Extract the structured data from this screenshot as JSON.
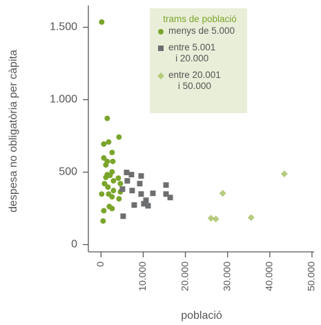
{
  "chart_data": {
    "type": "scatter",
    "xlabel": "població",
    "ylabel": "despesa no obligatòria per càpita",
    "legend_title": "trams de població",
    "legend": "upper right",
    "xlim": [
      -3000,
      50500
    ],
    "ylim": [
      -50,
      1650
    ],
    "xticks": [
      0,
      {
        "value": 10000,
        "label": "10.000"
      },
      {
        "value": 20000,
        "label": "20.000"
      },
      {
        "value": 30000,
        "label": "30.000"
      },
      {
        "value": 40000,
        "label": "40.000"
      },
      {
        "value": 50000,
        "label": "50.000"
      }
    ],
    "yticks": [
      0,
      500,
      {
        "value": 1000,
        "label": "1.000"
      },
      {
        "value": 1500,
        "label": "1.500"
      }
    ],
    "series": [
      {
        "name": "menys de 5.000",
        "color": "#7aa52b",
        "marker": "circle",
        "x": [
          160,
          1475,
          4262,
          656,
          1803,
          2623,
          656,
          1475,
          2787,
          1148,
          2623,
          2131,
          1475,
          4098,
          1148,
          160,
          1639,
          2951,
          2951,
          4590,
          4590,
          820,
          1803,
          2623,
          4262,
          1967,
          2623,
          656,
          492
        ],
        "values": [
          1536,
          871,
          742,
          694,
          708,
          636,
          598,
          574,
          574,
          550,
          502,
          478,
          483,
          459,
          464,
          349,
          397,
          440,
          373,
          421,
          364,
          421,
          349,
          330,
          316,
          263,
          249,
          234,
          163
        ]
      },
      {
        "name": "entre 5.001\ni 20.000",
        "color": "#6d6e70",
        "marker": "square",
        "x": [
          6066,
          7213,
          9508,
          6230,
          9180,
          5082,
          7377,
          9508,
          10656,
          10164,
          11148,
          12295,
          7869,
          5246,
          15410,
          15410,
          16393
        ],
        "values": [
          498,
          483,
          474,
          440,
          421,
          383,
          373,
          349,
          306,
          282,
          268,
          354,
          273,
          196,
          411,
          349,
          325
        ]
      },
      {
        "name": "entre 20.001\ni 50.000",
        "color": "#b5cc7e",
        "marker": "diamond",
        "x": [
          43443,
          28852,
          26066,
          27213,
          35574
        ],
        "values": [
          488,
          354,
          182,
          177,
          187
        ]
      }
    ]
  }
}
